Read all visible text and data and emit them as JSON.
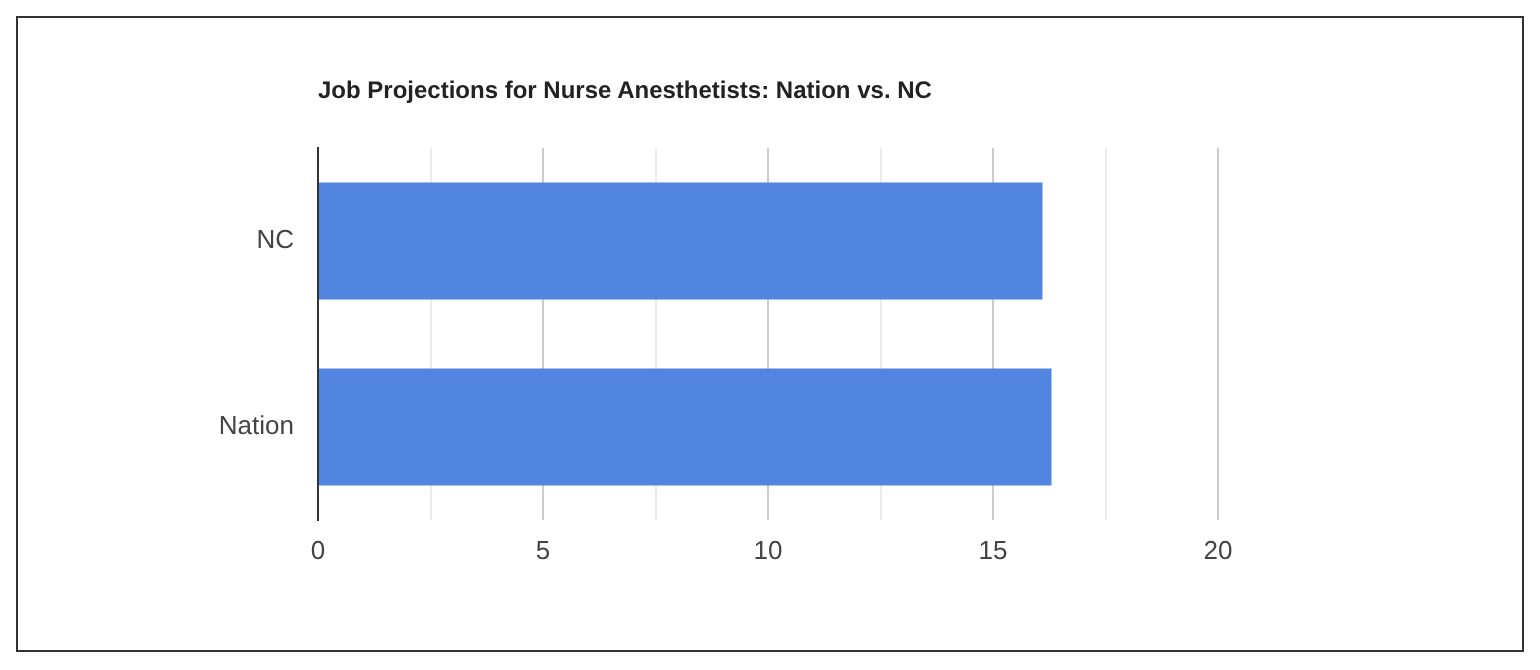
{
  "chart_data": {
    "type": "bar",
    "orientation": "horizontal",
    "title": "Job Projections for Nurse Anesthetists: Nation vs. NC",
    "categories": [
      "NC",
      "Nation"
    ],
    "values": [
      16.1,
      16.3
    ],
    "color": "#5285e0",
    "xlim": [
      0,
      20
    ],
    "xticks": [
      0,
      {
        "value": 2.5,
        "label": null
      },
      5,
      {
        "value": 7.5,
        "label": null
      },
      10,
      {
        "value": 12.5,
        "label": null
      },
      15,
      {
        "value": 17.5,
        "label": null
      },
      20
    ],
    "grid": "x"
  }
}
